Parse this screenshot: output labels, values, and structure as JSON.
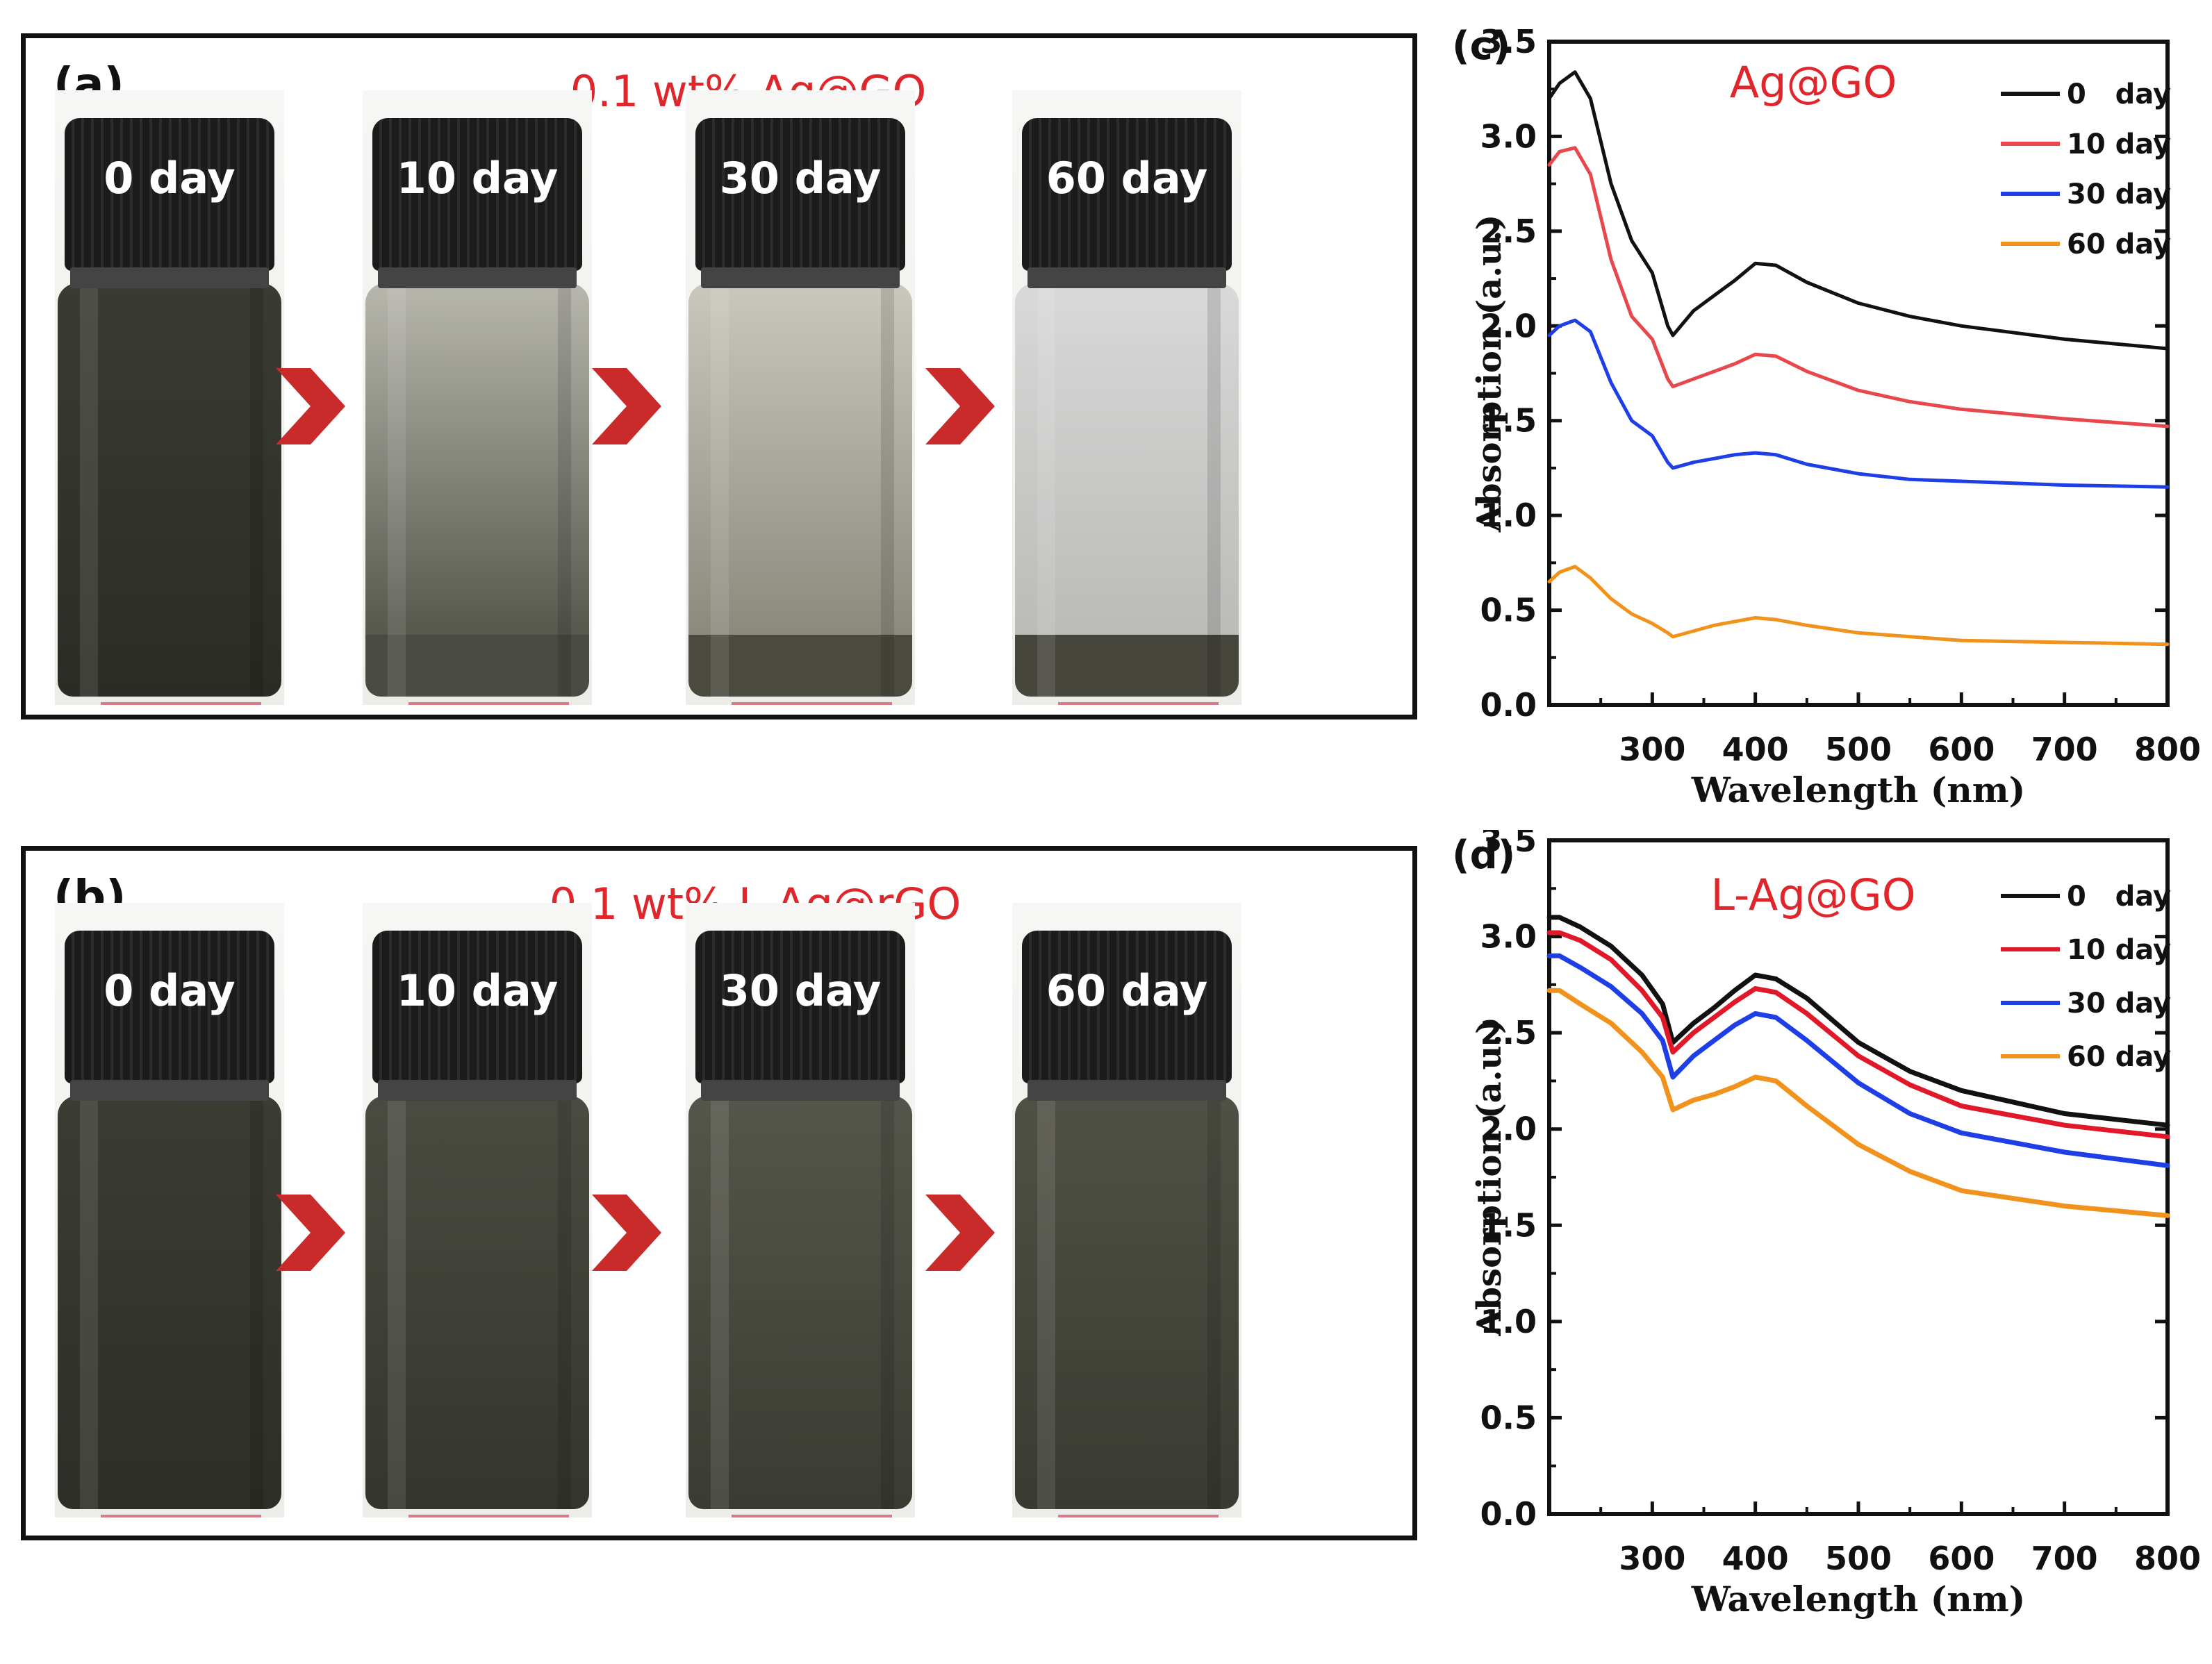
{
  "photo_panels": [
    {
      "letter": "(a)",
      "title": "0.1 wt% Ag@GO",
      "vials": [
        {
          "label": "0 day",
          "liquid_top": "#3a3b32",
          "liquid_bottom": "#2b2c25",
          "sediment_color": "#2b2c25",
          "sediment_fraction": 0
        },
        {
          "label": "10 day",
          "liquid_top": "#b7b7ae",
          "liquid_bottom": "#56574d",
          "sediment_color": "#4a4b42",
          "sediment_fraction": 0.15
        },
        {
          "label": "30 day",
          "liquid_top": "#c9c8bd",
          "liquid_bottom": "#8b8a7d",
          "sediment_color": "#4a4a3f",
          "sediment_fraction": 0.15
        },
        {
          "label": "60 day",
          "liquid_top": "#d8d9d8",
          "liquid_bottom": "#bbbcb9",
          "sediment_color": "#47463d",
          "sediment_fraction": 0.15
        }
      ]
    },
    {
      "letter": "(b)",
      "title": "0.1 wt% L-Ag@rGO",
      "vials": [
        {
          "label": "0 day",
          "liquid_top": "#3b3c33",
          "liquid_bottom": "#2d2e27",
          "sediment_color": "#2d2e27",
          "sediment_fraction": 0
        },
        {
          "label": "10 day",
          "liquid_top": "#4a4b41",
          "liquid_bottom": "#34352d",
          "sediment_color": "#34352d",
          "sediment_fraction": 0
        },
        {
          "label": "30 day",
          "liquid_top": "#55564b",
          "liquid_bottom": "#3a3b32",
          "sediment_color": "#3a3b32",
          "sediment_fraction": 0
        },
        {
          "label": "60 day",
          "liquid_top": "#505146",
          "liquid_bottom": "#393a31",
          "sediment_color": "#393a31",
          "sediment_fraction": 0
        }
      ]
    }
  ],
  "arrow_color": "#c92a2a",
  "chart_data": [
    {
      "letter": "(c)",
      "type": "line",
      "title": "Ag@GO",
      "title_color": "#e0252b",
      "xlabel": "Wavelength (nm)",
      "ylabel": "Absorption  (a.u.)",
      "xlim": [
        200,
        800
      ],
      "ylim": [
        0,
        3.5
      ],
      "xticks": [
        300,
        400,
        500,
        600,
        700,
        800
      ],
      "xtick_labels": [
        "300",
        "400",
        "500",
        "600",
        "700",
        "800"
      ],
      "yticks": [
        0,
        0.5,
        1.0,
        1.5,
        2.0,
        2.5,
        3.0,
        3.5
      ],
      "ytick_labels": [
        "0.0",
        "0.5",
        "1.0",
        "1.5",
        "2.0",
        "2.5",
        "3.0",
        "3.5"
      ],
      "legend_position": "top-right",
      "x": [
        200,
        210,
        225,
        240,
        260,
        280,
        300,
        315,
        320,
        340,
        360,
        380,
        400,
        420,
        450,
        500,
        550,
        600,
        700,
        800
      ],
      "series": [
        {
          "name": "0   day",
          "color": "#111111",
          "values": [
            3.2,
            3.28,
            3.34,
            3.2,
            2.75,
            2.45,
            2.28,
            2.0,
            1.95,
            2.08,
            2.16,
            2.24,
            2.33,
            2.32,
            2.23,
            2.12,
            2.05,
            2.0,
            1.93,
            1.88
          ]
        },
        {
          "name": "10 day",
          "color": "#e8474c",
          "values": [
            2.85,
            2.92,
            2.94,
            2.8,
            2.35,
            2.05,
            1.93,
            1.72,
            1.68,
            1.72,
            1.76,
            1.8,
            1.85,
            1.84,
            1.76,
            1.66,
            1.6,
            1.56,
            1.51,
            1.47
          ]
        },
        {
          "name": "30 day",
          "color": "#1f3fe6",
          "values": [
            1.95,
            2.0,
            2.03,
            1.97,
            1.7,
            1.5,
            1.42,
            1.28,
            1.25,
            1.28,
            1.3,
            1.32,
            1.33,
            1.32,
            1.27,
            1.22,
            1.19,
            1.18,
            1.16,
            1.15
          ]
        },
        {
          "name": "60 day",
          "color": "#f0921b",
          "values": [
            0.65,
            0.7,
            0.73,
            0.67,
            0.56,
            0.48,
            0.43,
            0.38,
            0.36,
            0.39,
            0.42,
            0.44,
            0.46,
            0.45,
            0.42,
            0.38,
            0.36,
            0.34,
            0.33,
            0.32
          ]
        }
      ]
    },
    {
      "letter": "(d)",
      "type": "line",
      "title": "L-Ag@GO",
      "title_color": "#e0252b",
      "xlabel": "Wavelength (nm)",
      "ylabel": "Absorption  (a.u.)",
      "xlim": [
        200,
        800
      ],
      "ylim": [
        0,
        3.5
      ],
      "xticks": [
        300,
        400,
        500,
        600,
        700,
        800
      ],
      "xtick_labels": [
        "300",
        "400",
        "500",
        "600",
        "700",
        "800"
      ],
      "yticks": [
        0,
        0.5,
        1.0,
        1.5,
        2.0,
        2.5,
        3.0,
        3.5
      ],
      "ytick_labels": [
        "0.0",
        "0.5",
        "1.0",
        "1.5",
        "2.0",
        "2.5",
        "3.0",
        "3.5"
      ],
      "legend_position": "top-right",
      "x": [
        200,
        210,
        230,
        260,
        290,
        310,
        320,
        340,
        360,
        380,
        400,
        420,
        450,
        500,
        550,
        600,
        700,
        800
      ],
      "series": [
        {
          "name": "0   day",
          "color": "#111111",
          "values": [
            3.1,
            3.1,
            3.05,
            2.95,
            2.8,
            2.65,
            2.45,
            2.55,
            2.63,
            2.72,
            2.8,
            2.78,
            2.68,
            2.45,
            2.3,
            2.2,
            2.08,
            2.02
          ]
        },
        {
          "name": "10 day",
          "color": "#e0182a",
          "values": [
            3.02,
            3.02,
            2.98,
            2.88,
            2.72,
            2.58,
            2.4,
            2.5,
            2.58,
            2.66,
            2.73,
            2.71,
            2.6,
            2.38,
            2.23,
            2.12,
            2.02,
            1.96
          ]
        },
        {
          "name": "30 day",
          "color": "#1f3fe6",
          "values": [
            2.9,
            2.9,
            2.84,
            2.74,
            2.6,
            2.46,
            2.27,
            2.38,
            2.46,
            2.54,
            2.6,
            2.58,
            2.46,
            2.24,
            2.08,
            1.98,
            1.88,
            1.81
          ]
        },
        {
          "name": "60 day",
          "color": "#f0921b",
          "values": [
            2.72,
            2.72,
            2.65,
            2.55,
            2.4,
            2.27,
            2.1,
            2.15,
            2.18,
            2.22,
            2.27,
            2.25,
            2.12,
            1.92,
            1.78,
            1.68,
            1.6,
            1.55
          ]
        }
      ]
    }
  ]
}
